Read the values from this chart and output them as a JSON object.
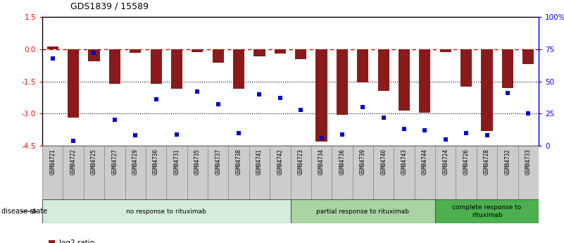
{
  "title": "GDS1839 / 15589",
  "samples": [
    "GSM84721",
    "GSM84722",
    "GSM84725",
    "GSM84727",
    "GSM84729",
    "GSM84730",
    "GSM84731",
    "GSM84735",
    "GSM84737",
    "GSM84738",
    "GSM84741",
    "GSM84742",
    "GSM84723",
    "GSM84734",
    "GSM84736",
    "GSM84739",
    "GSM84740",
    "GSM84743",
    "GSM84744",
    "GSM84724",
    "GSM84726",
    "GSM84728",
    "GSM84732",
    "GSM84733"
  ],
  "log2_ratio": [
    0.12,
    -3.2,
    -0.55,
    -1.62,
    -0.18,
    -1.62,
    -1.85,
    -0.12,
    -0.62,
    -1.85,
    -0.32,
    -0.2,
    -0.45,
    -4.3,
    -3.05,
    -1.55,
    -1.95,
    -2.85,
    -2.95,
    -0.12,
    -1.75,
    -3.8,
    -1.8,
    -0.7
  ],
  "percentile_rank": [
    68,
    4,
    72,
    20,
    8,
    36,
    9,
    42,
    32,
    10,
    40,
    37,
    28,
    6,
    9,
    30,
    22,
    13,
    12,
    5,
    10,
    8,
    41,
    25
  ],
  "groups": [
    {
      "label": "no response to rituximab",
      "start": 0,
      "end": 11,
      "color": "#d4edda"
    },
    {
      "label": "partial response to rituximab",
      "start": 12,
      "end": 18,
      "color": "#a8d5a2"
    },
    {
      "label": "complete response to\nrituximab",
      "start": 19,
      "end": 23,
      "color": "#4caf50"
    }
  ],
  "ylim_left": [
    -4.5,
    1.5
  ],
  "ylim_right": [
    0,
    100
  ],
  "yticks_left": [
    -4.5,
    -3.0,
    -1.5,
    0.0,
    1.5
  ],
  "yticks_right": [
    0,
    25,
    50,
    75,
    100
  ],
  "yticklabels_right": [
    "0",
    "25",
    "50",
    "75",
    "100%"
  ],
  "bar_color": "#8B1A1A",
  "dot_color": "#0000CC",
  "hline_zero_color": "#CC0000",
  "hline_dotted_color": "black",
  "label_box_color": "#cccccc",
  "label_box_edge": "#888888"
}
